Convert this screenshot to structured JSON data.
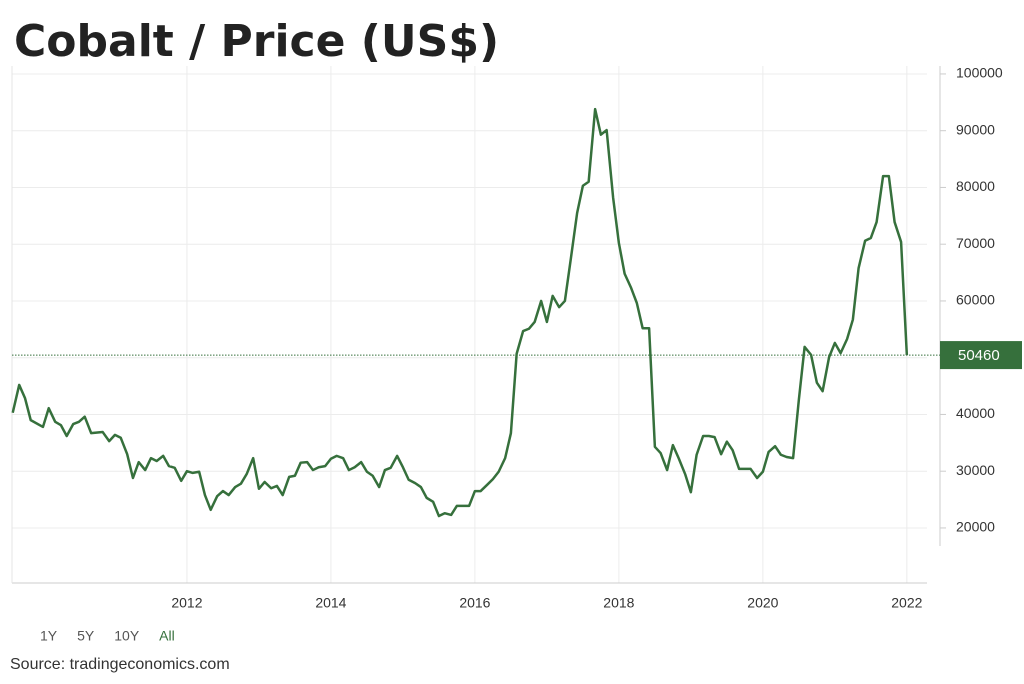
{
  "chart_data": {
    "type": "line",
    "title": "Cobalt / Price (US$)",
    "source": "Source: tradingeconomics.com",
    "range_buttons": [
      "1Y",
      "5Y",
      "10Y",
      "All"
    ],
    "active_range": "All",
    "x": [
      2009.58,
      2009.67,
      2009.75,
      2009.83,
      2010.0,
      2010.08,
      2010.17,
      2010.25,
      2010.33,
      2010.42,
      2010.5,
      2010.58,
      2010.67,
      2010.83,
      2010.92,
      2011.0,
      2011.08,
      2011.17,
      2011.25,
      2011.33,
      2011.42,
      2011.5,
      2011.58,
      2011.67,
      2011.75,
      2011.83,
      2011.92,
      2012.0,
      2012.08,
      2012.17,
      2012.25,
      2012.33,
      2012.42,
      2012.5,
      2012.58,
      2012.67,
      2012.75,
      2012.83,
      2012.92,
      2013.0,
      2013.08,
      2013.17,
      2013.25,
      2013.33,
      2013.42,
      2013.5,
      2013.58,
      2013.67,
      2013.75,
      2013.83,
      2013.92,
      2014.0,
      2014.08,
      2014.17,
      2014.25,
      2014.33,
      2014.42,
      2014.5,
      2014.58,
      2014.67,
      2014.75,
      2014.83,
      2014.92,
      2015.0,
      2015.08,
      2015.17,
      2015.25,
      2015.33,
      2015.42,
      2015.5,
      2015.58,
      2015.67,
      2015.75,
      2015.92,
      2016.0,
      2016.08,
      2016.17,
      2016.25,
      2016.33,
      2016.42,
      2016.5,
      2016.58,
      2016.67,
      2016.75,
      2016.83,
      2016.92,
      2017.0,
      2017.08,
      2017.17,
      2017.25,
      2017.33,
      2017.42,
      2017.5,
      2017.58,
      2017.67,
      2017.75,
      2017.83,
      2017.92,
      2018.0,
      2018.08,
      2018.17,
      2018.25,
      2018.33,
      2018.42,
      2018.5,
      2018.58,
      2018.67,
      2018.75,
      2018.83,
      2018.92,
      2019.0,
      2019.08,
      2019.17,
      2019.25,
      2019.33,
      2019.42,
      2019.5,
      2019.58,
      2019.67,
      2019.83,
      2019.92,
      2020.0,
      2020.08,
      2020.17,
      2020.25,
      2020.33,
      2020.42,
      2020.5,
      2020.58,
      2020.67,
      2020.75,
      2020.83,
      2020.92,
      2021.0,
      2021.08,
      2021.17,
      2021.25,
      2021.33,
      2021.42,
      2021.5,
      2021.58,
      2021.67,
      2021.75,
      2021.83,
      2021.92,
      2022.0
    ],
    "series": [
      {
        "name": "Cobalt",
        "color": "#36703c",
        "values": [
          40300,
          45200,
          42900,
          39000,
          37800,
          41100,
          38700,
          38100,
          36200,
          38300,
          38700,
          39600,
          36700,
          36900,
          35300,
          36400,
          35900,
          33000,
          28800,
          31600,
          30200,
          32300,
          31800,
          32700,
          30900,
          30600,
          28300,
          30000,
          29700,
          29900,
          25800,
          23200,
          25600,
          26500,
          25800,
          27200,
          27800,
          29500,
          32300,
          26900,
          28100,
          27000,
          27400,
          25800,
          29000,
          29200,
          31500,
          31600,
          30200,
          30700,
          30900,
          32200,
          32700,
          32300,
          30200,
          30700,
          31600,
          29900,
          29200,
          27200,
          30200,
          30600,
          32700,
          30700,
          28500,
          27900,
          27200,
          25300,
          24600,
          22100,
          22600,
          22300,
          23900,
          23900,
          26500,
          26500,
          27600,
          28600,
          29900,
          32300,
          36700,
          50700,
          54700,
          55100,
          56300,
          60000,
          56300,
          60900,
          58900,
          60000,
          67200,
          75500,
          80300,
          81000,
          93800,
          89300,
          90100,
          78200,
          70200,
          64800,
          62300,
          59600,
          55200,
          55200,
          34300,
          33200,
          30200,
          34600,
          32300,
          29500,
          26300,
          32900,
          36200,
          36200,
          36000,
          33000,
          35200,
          33700,
          30400,
          30400,
          28800,
          29900,
          33400,
          34400,
          32900,
          32500,
          32300,
          42600,
          51900,
          50500,
          45600,
          44100,
          50100,
          52600,
          50800,
          53300,
          56700,
          65800,
          70600,
          71100,
          73900,
          82000,
          82000,
          73900,
          70400,
          50460
        ]
      }
    ],
    "reference_line": {
      "value": 50460,
      "color": "#36703c"
    },
    "xlim": [
      2009.57,
      2022.28
    ],
    "xticks": [
      2012,
      2014,
      2016,
      2018,
      2020,
      2022
    ],
    "ylim": [
      10300,
      101400
    ],
    "yticks": [
      20000,
      30000,
      40000,
      50000,
      60000,
      70000,
      80000,
      90000,
      100000
    ],
    "grid": true
  }
}
